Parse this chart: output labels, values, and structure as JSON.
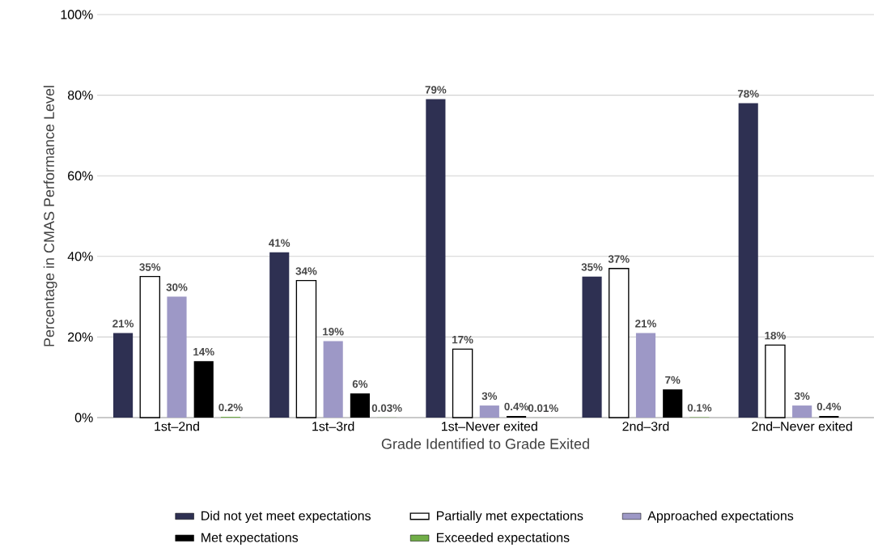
{
  "chart_data": {
    "type": "bar",
    "xlabel": "Grade Identified to Grade Exited",
    "ylabel": "Percentage in CMAS Performance Level",
    "categories": [
      "1st–2nd",
      "1st–3rd",
      "1st–Never exited",
      "2nd–3rd",
      "2nd–Never exited"
    ],
    "series": [
      {
        "name": "Did not yet meet expectations",
        "color": "#2e3052",
        "values": [
          21,
          41,
          79,
          35,
          78
        ],
        "value_labels": [
          "21%",
          "41%",
          "79%",
          "35%",
          "78%"
        ]
      },
      {
        "name": "Partially met expectations",
        "color": "#000000",
        "values": [
          35,
          34,
          17,
          37,
          18
        ],
        "value_labels": [
          "35%",
          "34%",
          "17%",
          "37%",
          "18%"
        ]
      },
      {
        "name": "Approached expectations",
        "color": "#9d98c6",
        "values": [
          30,
          19,
          3,
          21,
          3
        ],
        "value_labels": [
          "30%",
          "19%",
          "3%",
          "21%",
          "3%"
        ]
      },
      {
        "name": "Met expectations",
        "color": "#000000",
        "values": [
          14,
          6,
          0.4,
          7,
          0.4
        ],
        "value_labels": [
          "14%",
          "6%",
          "0.4%",
          "7%",
          "0.4%"
        ]
      },
      {
        "name": "Exceeded expectations",
        "color": "#70ad47",
        "values": [
          0.2,
          0.03,
          0.01,
          0.1,
          null
        ],
        "value_labels": [
          "0.2%",
          "0.03%",
          "0.01%",
          "0.1%",
          null
        ]
      }
    ],
    "ylim": [
      0,
      100
    ],
    "yticks": [
      {
        "value": 0,
        "label": "0%"
      },
      {
        "value": 20,
        "label": "20%"
      },
      {
        "value": 40,
        "label": "40%"
      },
      {
        "value": 60,
        "label": "60%"
      },
      {
        "value": 80,
        "label": "80%"
      },
      {
        "value": 100,
        "label": "100%"
      }
    ],
    "grid": "y",
    "legend": "bottom"
  }
}
